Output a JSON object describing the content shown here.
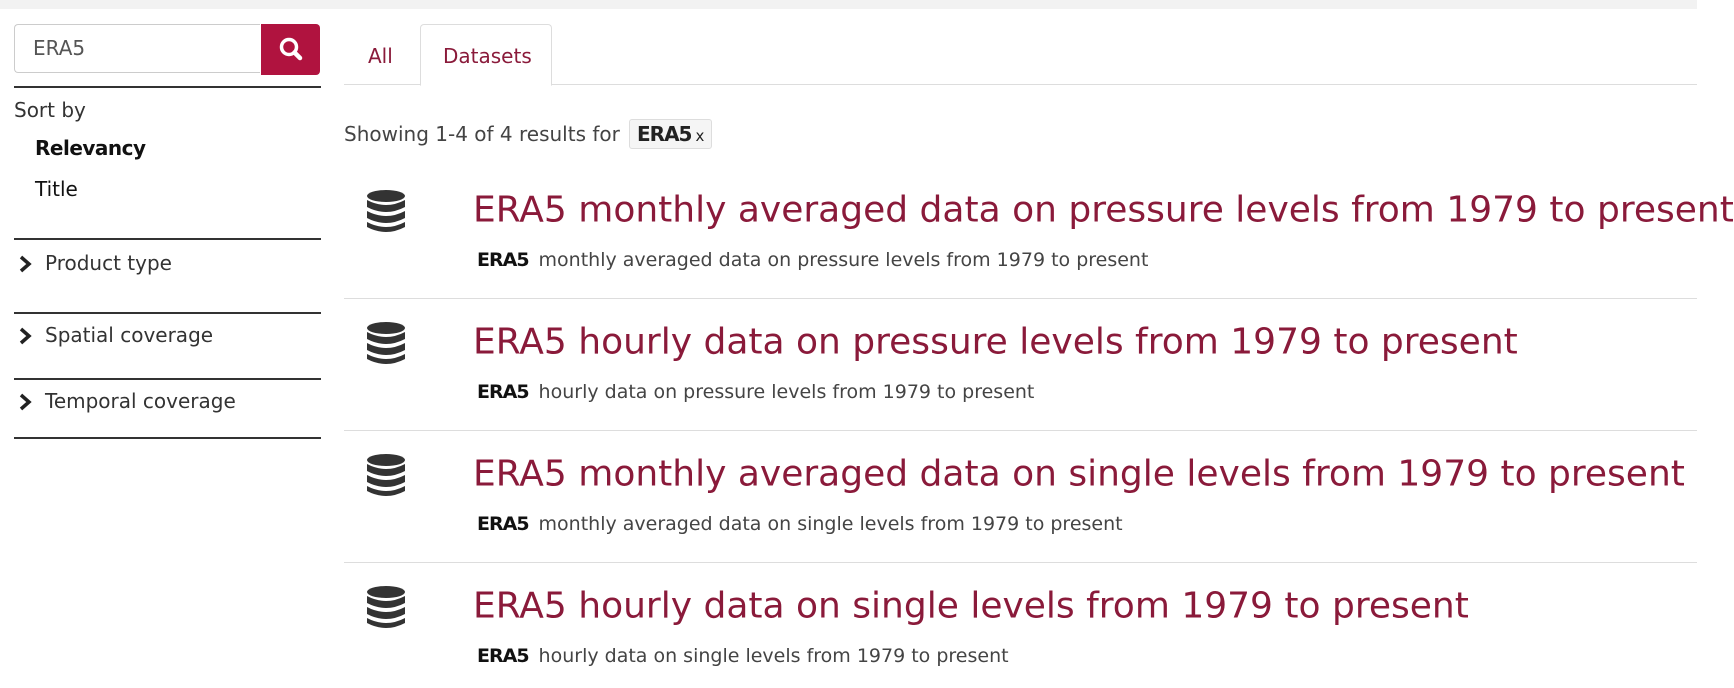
{
  "search": {
    "query": "ERA5"
  },
  "sort": {
    "label": "Sort by",
    "options": [
      "Relevancy",
      "Title"
    ]
  },
  "filters": [
    "Product type",
    "Spatial coverage",
    "Temporal coverage"
  ],
  "tabs": [
    "All",
    "Datasets"
  ],
  "summary": {
    "text": "Showing 1-4 of 4 results for",
    "tag": "ERA5",
    "close": "x"
  },
  "results": [
    {
      "title": "ERA5 monthly averaged data on pressure levels from 1979 to present",
      "tag": "ERA5",
      "description": "monthly averaged data on pressure levels from 1979 to present"
    },
    {
      "title": "ERA5 hourly data on pressure levels from 1979 to present",
      "tag": "ERA5",
      "description": "hourly data on pressure levels from 1979 to present"
    },
    {
      "title": "ERA5 monthly averaged data on single levels from 1979 to present",
      "tag": "ERA5",
      "description": "monthly averaged data on single levels from 1979 to present"
    },
    {
      "title": "ERA5 hourly data on single levels from 1979 to present",
      "tag": "ERA5",
      "description": "hourly data on single levels from 1979 to present"
    }
  ]
}
